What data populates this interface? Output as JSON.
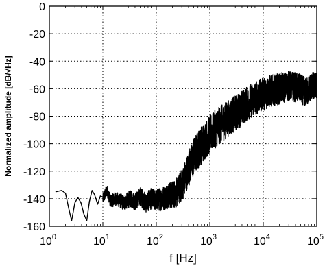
{
  "chart_data": {
    "type": "line",
    "title": "",
    "xlabel": "f [Hz]",
    "ylabel": "Normalized amplitude [dB/√Hz]",
    "x_scale": "log",
    "xlim": [
      1,
      100000
    ],
    "ylim": [
      -160,
      0
    ],
    "grid": true,
    "x_ticks": [
      {
        "value": 1,
        "base": "10",
        "exp": "0"
      },
      {
        "value": 10,
        "base": "10",
        "exp": "1"
      },
      {
        "value": 100,
        "base": "10",
        "exp": "2"
      },
      {
        "value": 1000,
        "base": "10",
        "exp": "3"
      },
      {
        "value": 10000,
        "base": "10",
        "exp": "4"
      },
      {
        "value": 100000,
        "base": "10",
        "exp": "5"
      }
    ],
    "y_ticks": [
      0,
      -20,
      -40,
      -60,
      -80,
      -100,
      -120,
      -140,
      -160
    ],
    "y_tick_labels": [
      "0",
      "-20",
      "-40",
      "-60",
      "-80",
      "-100",
      "-120",
      "-140",
      "-160"
    ],
    "line_color": "#000000",
    "series": [
      {
        "values_note_free": true,
        "points": [
          [
            1.3,
            -135
          ],
          [
            1.7,
            -134
          ],
          [
            2.0,
            -136
          ],
          [
            2.3,
            -147
          ],
          [
            2.6,
            -156
          ],
          [
            3.0,
            -143
          ],
          [
            3.4,
            -139
          ],
          [
            3.9,
            -143
          ],
          [
            4.4,
            -151
          ],
          [
            5.0,
            -156
          ],
          [
            5.6,
            -142
          ],
          [
            6.3,
            -134
          ],
          [
            7.0,
            -137
          ],
          [
            8.0,
            -144
          ],
          [
            9.0,
            -138
          ],
          [
            10,
            -140
          ],
          [
            12,
            -134
          ],
          [
            14,
            -142
          ],
          [
            17,
            -140
          ],
          [
            20,
            -141
          ],
          [
            25,
            -143
          ],
          [
            32,
            -140
          ],
          [
            40,
            -142
          ],
          [
            50,
            -138
          ],
          [
            63,
            -143
          ],
          [
            80,
            -140
          ],
          [
            100,
            -141
          ],
          [
            130,
            -140
          ],
          [
            160,
            -138
          ],
          [
            200,
            -137
          ],
          [
            250,
            -135
          ],
          [
            320,
            -128
          ],
          [
            400,
            -118
          ],
          [
            500,
            -110
          ],
          [
            630,
            -103
          ],
          [
            800,
            -98
          ],
          [
            1000,
            -93
          ],
          [
            1300,
            -89
          ],
          [
            1600,
            -86
          ],
          [
            2000,
            -83
          ],
          [
            2500,
            -80
          ],
          [
            3200,
            -77
          ],
          [
            4000,
            -74
          ],
          [
            5000,
            -71
          ],
          [
            6300,
            -68
          ],
          [
            8000,
            -66
          ],
          [
            10000,
            -64
          ],
          [
            13000,
            -62
          ],
          [
            16000,
            -61
          ],
          [
            20000,
            -60
          ],
          [
            25000,
            -59
          ],
          [
            32000,
            -58
          ],
          [
            40000,
            -59
          ],
          [
            50000,
            -60
          ],
          [
            63000,
            -63
          ],
          [
            80000,
            -58
          ],
          [
            100000,
            -58
          ]
        ],
        "noise_band": [
          [
            1,
            0
          ],
          [
            10,
            4
          ],
          [
            100,
            8
          ],
          [
            200,
            10
          ],
          [
            500,
            14
          ],
          [
            1000,
            14
          ],
          [
            10000,
            12
          ],
          [
            100000,
            10
          ]
        ]
      }
    ]
  }
}
